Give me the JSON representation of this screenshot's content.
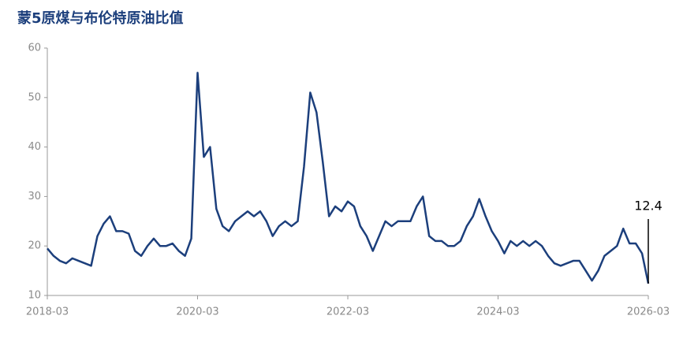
{
  "chart_data": {
    "type": "line",
    "title": "蒙5原煤与布伦特原油比值",
    "x": [
      "2018-03",
      "2018-04",
      "2018-05",
      "2018-06",
      "2018-07",
      "2018-08",
      "2018-09",
      "2018-10",
      "2018-11",
      "2018-12",
      "2019-01",
      "2019-02",
      "2019-03",
      "2019-04",
      "2019-05",
      "2019-06",
      "2019-07",
      "2019-08",
      "2019-09",
      "2019-10",
      "2019-11",
      "2019-12",
      "2020-01",
      "2020-02",
      "2020-03",
      "2020-04",
      "2020-05",
      "2020-06",
      "2020-07",
      "2020-08",
      "2020-09",
      "2020-10",
      "2020-11",
      "2020-12",
      "2021-01",
      "2021-02",
      "2021-03",
      "2021-04",
      "2021-05",
      "2021-06",
      "2021-07",
      "2021-08",
      "2021-09",
      "2021-10",
      "2021-11",
      "2021-12",
      "2022-01",
      "2022-02",
      "2022-03",
      "2022-04",
      "2022-05",
      "2022-06",
      "2022-07",
      "2022-08",
      "2022-09",
      "2022-10",
      "2022-11",
      "2022-12",
      "2023-01",
      "2023-02",
      "2023-03",
      "2023-04",
      "2023-05",
      "2023-06",
      "2023-07",
      "2023-08",
      "2023-09",
      "2023-10",
      "2023-11",
      "2023-12",
      "2024-01",
      "2024-02",
      "2024-03",
      "2024-04",
      "2024-05",
      "2024-06",
      "2024-07",
      "2024-08",
      "2024-09",
      "2024-10",
      "2024-11",
      "2024-12",
      "2025-01",
      "2025-02",
      "2025-03",
      "2025-04",
      "2025-05",
      "2025-06",
      "2025-07",
      "2025-08",
      "2025-09",
      "2025-10",
      "2025-11",
      "2025-12",
      "2026-01",
      "2026-02",
      "2026-03"
    ],
    "series": [
      {
        "color": "#1c3f7c",
        "values": [
          19.5,
          18,
          17,
          16.5,
          17.5,
          17,
          16.5,
          16,
          22,
          24.5,
          26,
          23,
          23,
          22.5,
          19,
          18,
          20,
          21.5,
          20,
          20,
          20.5,
          19,
          18,
          21.5,
          55,
          38,
          40,
          27.5,
          24,
          23,
          25,
          26,
          27,
          26,
          27,
          25,
          22,
          24,
          25,
          24,
          25,
          36,
          51,
          47,
          37,
          26,
          28,
          27,
          29,
          28,
          24,
          22,
          19,
          22,
          25,
          24,
          25,
          25,
          25,
          28,
          30,
          22,
          21,
          21,
          20,
          20,
          21,
          24,
          26,
          29.5,
          26,
          23,
          21,
          18.5,
          21,
          20,
          21,
          20,
          21,
          20,
          18,
          16.5,
          16,
          16.5,
          17,
          17,
          15,
          13,
          15,
          18,
          19,
          20,
          23.5,
          20.5,
          20.5,
          18.5,
          12.4
        ]
      }
    ],
    "annotation": "12.4",
    "xlim": [
      "2018-03",
      "2026-03"
    ],
    "xticks": [
      "2018-03",
      "2020-03",
      "2022-03",
      "2024-03",
      "2026-03"
    ],
    "ylim": [
      10,
      60
    ],
    "yticks": [
      10,
      20,
      30,
      40,
      50,
      60
    ]
  }
}
